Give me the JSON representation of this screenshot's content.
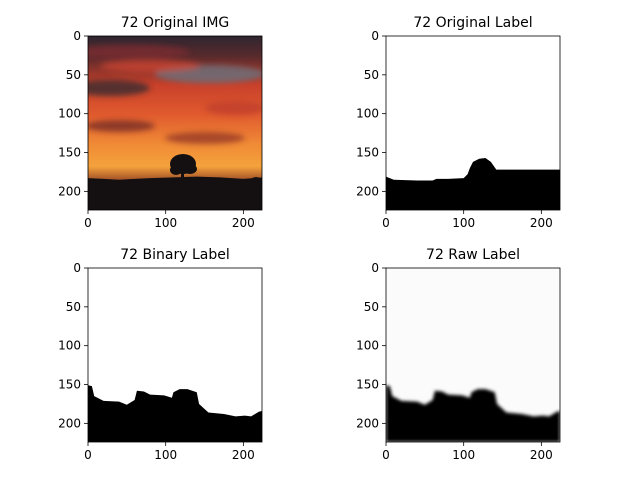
{
  "figure": {
    "background": "#ffffff"
  },
  "chart_data": [
    {
      "type": "image",
      "title": "72 Original IMG",
      "content": "photo",
      "xlim": [
        0,
        224
      ],
      "ylim": [
        224,
        0
      ],
      "xticks": [
        0,
        100,
        200
      ],
      "yticks": [
        0,
        50,
        100,
        150,
        200
      ],
      "colors": {
        "sky_top": "#3a2e38",
        "clouds_red": "#d2412a",
        "glow_orange": "#f39b3a",
        "ground": "#141012"
      },
      "silhouette": [
        [
          0,
          183
        ],
        [
          20,
          184
        ],
        [
          40,
          185
        ],
        [
          60,
          184
        ],
        [
          80,
          183
        ],
        [
          110,
          182
        ],
        [
          140,
          181
        ],
        [
          170,
          182
        ],
        [
          200,
          184
        ],
        [
          224,
          182
        ]
      ]
    },
    {
      "type": "image",
      "title": "72 Original Label",
      "content": "mask",
      "xlim": [
        0,
        224
      ],
      "ylim": [
        224,
        0
      ],
      "xticks": [
        0,
        100,
        200
      ],
      "yticks": [
        0,
        50,
        100,
        150,
        200
      ],
      "colors": {
        "foreground": "#000000",
        "background": "#ffffff"
      },
      "boundary": [
        [
          0,
          181
        ],
        [
          10,
          185
        ],
        [
          40,
          186
        ],
        [
          60,
          186
        ],
        [
          65,
          184
        ],
        [
          80,
          184
        ],
        [
          100,
          183
        ],
        [
          105,
          178
        ],
        [
          108,
          170
        ],
        [
          112,
          162
        ],
        [
          120,
          158
        ],
        [
          128,
          157
        ],
        [
          135,
          162
        ],
        [
          142,
          172
        ],
        [
          180,
          172
        ],
        [
          224,
          172
        ]
      ]
    },
    {
      "type": "image",
      "title": "72 Binary Label",
      "content": "mask",
      "xlim": [
        0,
        224
      ],
      "ylim": [
        224,
        0
      ],
      "xticks": [
        0,
        100,
        200
      ],
      "yticks": [
        0,
        50,
        100,
        150,
        200
      ],
      "colors": {
        "foreground": "#000000",
        "background": "#ffffff"
      },
      "boundary": [
        [
          0,
          151
        ],
        [
          5,
          152
        ],
        [
          8,
          165
        ],
        [
          20,
          171
        ],
        [
          40,
          172
        ],
        [
          50,
          176
        ],
        [
          60,
          170
        ],
        [
          63,
          158
        ],
        [
          72,
          159
        ],
        [
          80,
          163
        ],
        [
          98,
          164
        ],
        [
          108,
          167
        ],
        [
          110,
          160
        ],
        [
          118,
          156
        ],
        [
          128,
          156
        ],
        [
          140,
          160
        ],
        [
          143,
          175
        ],
        [
          155,
          186
        ],
        [
          175,
          188
        ],
        [
          190,
          191
        ],
        [
          202,
          190
        ],
        [
          210,
          191
        ],
        [
          220,
          185
        ],
        [
          224,
          184
        ]
      ]
    },
    {
      "type": "image",
      "title": "72 Raw Label",
      "content": "soft_mask",
      "xlim": [
        0,
        224
      ],
      "ylim": [
        224,
        0
      ],
      "xticks": [
        0,
        100,
        200
      ],
      "yticks": [
        0,
        50,
        100,
        150,
        200
      ],
      "colors": {
        "foreground": "#000000",
        "background": "#fbfbfb"
      },
      "boundary": [
        [
          0,
          151
        ],
        [
          5,
          152
        ],
        [
          8,
          165
        ],
        [
          20,
          171
        ],
        [
          40,
          172
        ],
        [
          50,
          176
        ],
        [
          60,
          170
        ],
        [
          63,
          158
        ],
        [
          72,
          159
        ],
        [
          80,
          163
        ],
        [
          98,
          164
        ],
        [
          108,
          167
        ],
        [
          110,
          160
        ],
        [
          118,
          156
        ],
        [
          128,
          156
        ],
        [
          140,
          160
        ],
        [
          143,
          175
        ],
        [
          155,
          186
        ],
        [
          175,
          188
        ],
        [
          190,
          191
        ],
        [
          202,
          190
        ],
        [
          210,
          191
        ],
        [
          220,
          185
        ],
        [
          224,
          184
        ]
      ]
    }
  ]
}
